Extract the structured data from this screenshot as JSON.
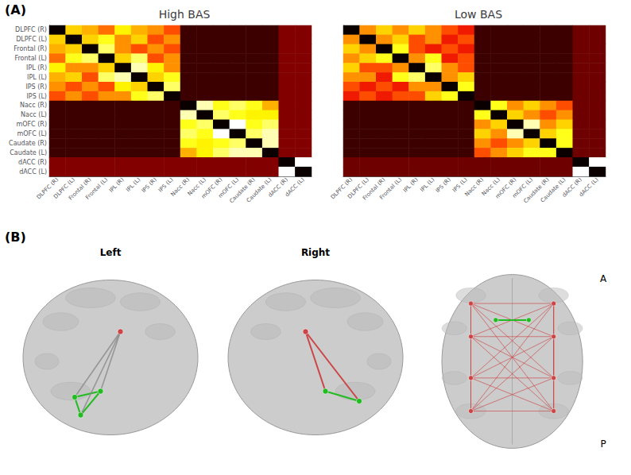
{
  "chart_data": [
    {
      "type": "heatmap",
      "title": "High BAS",
      "annotations": [
        "(A)"
      ],
      "categories": [
        "DLPFC (R)",
        "DLPFC (L)",
        "Frontal (R)",
        "Frontal (L)",
        "IPL (R)",
        "IPL (L)",
        "IPS (R)",
        "IPS (L)",
        "Nacc (R)",
        "Nacc (L)",
        "mOFC (R)",
        "mOFC (L)",
        "Caudate (R)",
        "Caudate (L)",
        "dACC (R)",
        "dACC (L)"
      ],
      "tick_labels": true,
      "color_range": [
        0,
        1
      ],
      "colors": [
        "#0b0000",
        "#b00000",
        "#ff2000",
        "#ff9000",
        "#ffff00",
        "#ffff80",
        "#ffffff"
      ],
      "values": [
        [
          0.0,
          0.6,
          0.55,
          0.45,
          0.65,
          0.55,
          0.5,
          0.4,
          0.05,
          0.05,
          0.05,
          0.05,
          0.05,
          0.05,
          0.12,
          0.12
        ],
        [
          0.6,
          0.0,
          0.6,
          0.7,
          0.5,
          0.6,
          0.4,
          0.5,
          0.05,
          0.05,
          0.05,
          0.05,
          0.05,
          0.05,
          0.12,
          0.12
        ],
        [
          0.55,
          0.6,
          0.0,
          0.8,
          0.5,
          0.4,
          0.5,
          0.4,
          0.05,
          0.05,
          0.05,
          0.05,
          0.05,
          0.05,
          0.12,
          0.12
        ],
        [
          0.45,
          0.7,
          0.8,
          0.0,
          0.6,
          0.8,
          0.4,
          0.5,
          0.05,
          0.05,
          0.05,
          0.05,
          0.05,
          0.05,
          0.12,
          0.12
        ],
        [
          0.65,
          0.5,
          0.5,
          0.6,
          0.0,
          0.9,
          0.65,
          0.5,
          0.05,
          0.05,
          0.05,
          0.05,
          0.05,
          0.05,
          0.12,
          0.12
        ],
        [
          0.55,
          0.6,
          0.4,
          0.8,
          0.9,
          0.0,
          0.6,
          0.7,
          0.05,
          0.05,
          0.05,
          0.05,
          0.05,
          0.05,
          0.12,
          0.12
        ],
        [
          0.5,
          0.4,
          0.5,
          0.4,
          0.65,
          0.6,
          0.0,
          0.8,
          0.05,
          0.05,
          0.05,
          0.05,
          0.05,
          0.05,
          0.12,
          0.12
        ],
        [
          0.4,
          0.5,
          0.4,
          0.5,
          0.5,
          0.7,
          0.8,
          0.0,
          0.05,
          0.05,
          0.05,
          0.05,
          0.05,
          0.05,
          0.12,
          0.12
        ],
        [
          0.05,
          0.05,
          0.05,
          0.05,
          0.05,
          0.05,
          0.05,
          0.05,
          0.0,
          0.9,
          0.7,
          0.8,
          0.7,
          0.55,
          0.12,
          0.12
        ],
        [
          0.05,
          0.05,
          0.05,
          0.05,
          0.05,
          0.05,
          0.05,
          0.05,
          0.9,
          0.0,
          0.8,
          0.7,
          0.65,
          0.65,
          0.12,
          0.12
        ],
        [
          0.05,
          0.05,
          0.05,
          0.05,
          0.05,
          0.05,
          0.05,
          0.05,
          0.7,
          0.8,
          0.0,
          1.0,
          0.7,
          0.8,
          0.12,
          0.12
        ],
        [
          0.05,
          0.05,
          0.05,
          0.05,
          0.05,
          0.05,
          0.05,
          0.05,
          0.8,
          0.7,
          1.0,
          0.0,
          0.8,
          0.9,
          0.12,
          0.12
        ],
        [
          0.05,
          0.05,
          0.05,
          0.05,
          0.05,
          0.05,
          0.05,
          0.05,
          0.7,
          0.65,
          0.7,
          0.8,
          0.0,
          0.9,
          0.12,
          0.12
        ],
        [
          0.05,
          0.05,
          0.05,
          0.05,
          0.05,
          0.05,
          0.05,
          0.05,
          0.55,
          0.65,
          0.8,
          0.9,
          0.9,
          0.0,
          0.12,
          0.12
        ],
        [
          0.12,
          0.12,
          0.12,
          0.12,
          0.12,
          0.12,
          0.12,
          0.12,
          0.12,
          0.12,
          0.12,
          0.12,
          0.12,
          0.12,
          0.0,
          1.0
        ],
        [
          0.12,
          0.12,
          0.12,
          0.12,
          0.12,
          0.12,
          0.12,
          0.12,
          0.12,
          0.12,
          0.12,
          0.12,
          0.12,
          0.12,
          1.0,
          0.0
        ]
      ]
    },
    {
      "type": "heatmap",
      "title": "Low BAS",
      "categories": [
        "DLPFC (R)",
        "DLPFC (L)",
        "Frontal (R)",
        "Frontal (L)",
        "IPL (R)",
        "IPL (L)",
        "IPS (R)",
        "IPS (L)",
        "Nacc (R)",
        "Nacc (L)",
        "mOFC (R)",
        "mOFC (L)",
        "Caudate (R)",
        "Caudate (L)",
        "dACC (R)",
        "dACC (L)"
      ],
      "tick_labels": "x",
      "color_range": [
        0,
        1
      ],
      "colors": [
        "#0b0000",
        "#b00000",
        "#ff2000",
        "#ff9000",
        "#ffff00",
        "#ffff80",
        "#ffffff"
      ],
      "values": [
        [
          0.0,
          0.5,
          0.6,
          0.5,
          0.6,
          0.5,
          0.4,
          0.3,
          0.05,
          0.05,
          0.05,
          0.05,
          0.05,
          0.05,
          0.1,
          0.1
        ],
        [
          0.5,
          0.0,
          0.5,
          0.6,
          0.4,
          0.5,
          0.3,
          0.4,
          0.05,
          0.05,
          0.05,
          0.05,
          0.05,
          0.05,
          0.1,
          0.1
        ],
        [
          0.6,
          0.5,
          0.0,
          0.7,
          0.4,
          0.3,
          0.4,
          0.3,
          0.05,
          0.05,
          0.05,
          0.05,
          0.05,
          0.05,
          0.1,
          0.1
        ],
        [
          0.5,
          0.6,
          0.7,
          0.0,
          0.5,
          0.7,
          0.3,
          0.4,
          0.05,
          0.05,
          0.05,
          0.05,
          0.05,
          0.05,
          0.1,
          0.1
        ],
        [
          0.6,
          0.4,
          0.4,
          0.5,
          0.0,
          0.8,
          0.5,
          0.4,
          0.05,
          0.05,
          0.05,
          0.05,
          0.05,
          0.05,
          0.1,
          0.1
        ],
        [
          0.5,
          0.5,
          0.3,
          0.7,
          0.8,
          0.0,
          0.5,
          0.6,
          0.05,
          0.05,
          0.05,
          0.05,
          0.05,
          0.05,
          0.1,
          0.1
        ],
        [
          0.4,
          0.3,
          0.4,
          0.3,
          0.5,
          0.5,
          0.0,
          0.7,
          0.05,
          0.05,
          0.05,
          0.05,
          0.05,
          0.05,
          0.1,
          0.1
        ],
        [
          0.3,
          0.4,
          0.3,
          0.4,
          0.4,
          0.6,
          0.7,
          0.0,
          0.05,
          0.05,
          0.05,
          0.05,
          0.05,
          0.05,
          0.1,
          0.1
        ],
        [
          0.05,
          0.05,
          0.05,
          0.05,
          0.05,
          0.05,
          0.05,
          0.05,
          0.0,
          0.7,
          0.5,
          0.6,
          0.5,
          0.4,
          0.1,
          0.1
        ],
        [
          0.05,
          0.05,
          0.05,
          0.05,
          0.05,
          0.05,
          0.05,
          0.05,
          0.7,
          0.0,
          0.6,
          0.5,
          0.4,
          0.5,
          0.1,
          0.1
        ],
        [
          0.05,
          0.05,
          0.05,
          0.05,
          0.05,
          0.05,
          0.05,
          0.05,
          0.5,
          0.6,
          0.0,
          0.9,
          0.5,
          0.6,
          0.1,
          0.1
        ],
        [
          0.05,
          0.05,
          0.05,
          0.05,
          0.05,
          0.05,
          0.05,
          0.05,
          0.6,
          0.5,
          0.9,
          0.0,
          0.6,
          0.7,
          0.1,
          0.1
        ],
        [
          0.05,
          0.05,
          0.05,
          0.05,
          0.05,
          0.05,
          0.05,
          0.05,
          0.5,
          0.4,
          0.5,
          0.6,
          0.0,
          0.7,
          0.1,
          0.1
        ],
        [
          0.05,
          0.05,
          0.05,
          0.05,
          0.05,
          0.05,
          0.05,
          0.05,
          0.4,
          0.5,
          0.6,
          0.7,
          0.7,
          0.0,
          0.1,
          0.1
        ],
        [
          0.1,
          0.1,
          0.1,
          0.1,
          0.1,
          0.1,
          0.1,
          0.1,
          0.1,
          0.1,
          0.1,
          0.1,
          0.1,
          0.1,
          0.0,
          1.0
        ],
        [
          0.1,
          0.1,
          0.1,
          0.1,
          0.1,
          0.1,
          0.1,
          0.1,
          0.1,
          0.1,
          0.1,
          0.1,
          0.1,
          0.1,
          1.0,
          0.0
        ]
      ]
    },
    {
      "type": "diagram",
      "annotations": [
        "(B)"
      ],
      "colors": [
        "#22bb22",
        "#cc4444",
        "#888888",
        "#cccccc",
        "#999999"
      ],
      "panels": [
        {
          "title": "Left"
        },
        {
          "title": "Right"
        },
        {
          "annotations": [
            "A",
            "P"
          ]
        }
      ]
    }
  ]
}
